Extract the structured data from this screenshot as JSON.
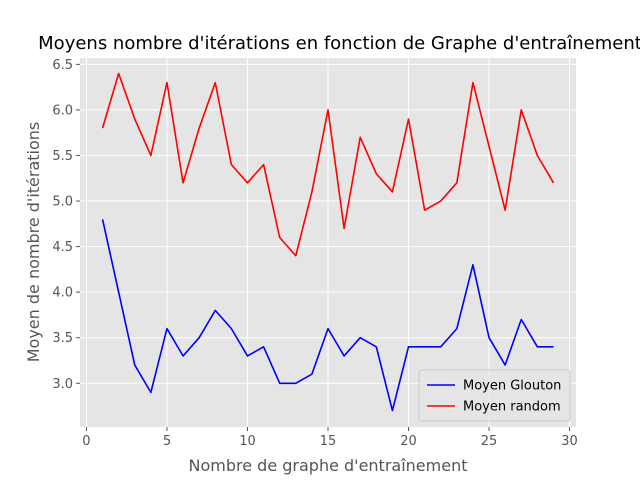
{
  "chart_data": {
    "type": "line",
    "title": "Moyens nombre d'itérations en fonction de Graphe d'entraînement",
    "xlabel": "Nombre de graphe d'entraînement",
    "ylabel": "Moyen de nombre d'itérations",
    "xlim": [
      -0.4,
      30.4
    ],
    "ylim": [
      2.52,
      6.57
    ],
    "xticks": [
      0,
      5,
      10,
      15,
      20,
      25,
      30
    ],
    "yticks": [
      3.0,
      3.5,
      4.0,
      4.5,
      5.0,
      5.5,
      6.0,
      6.5
    ],
    "grid": true,
    "legend_position": "lower-right",
    "background": "#e5e5e5",
    "x": [
      1,
      2,
      3,
      4,
      5,
      6,
      7,
      8,
      9,
      10,
      11,
      12,
      13,
      14,
      15,
      16,
      17,
      18,
      19,
      20,
      21,
      22,
      23,
      24,
      25,
      26,
      27,
      28,
      29
    ],
    "series": [
      {
        "name": "Moyen Glouton",
        "color": "#0000ff",
        "values": [
          4.8,
          4.0,
          3.2,
          2.9,
          3.6,
          3.3,
          3.5,
          3.8,
          3.6,
          3.3,
          3.4,
          3.0,
          3.0,
          3.1,
          3.6,
          3.3,
          3.5,
          3.4,
          2.7,
          3.4,
          3.4,
          3.4,
          3.6,
          4.3,
          3.5,
          3.2,
          3.7,
          3.4,
          3.4
        ]
      },
      {
        "name": "Moyen random",
        "color": "#ff0000",
        "values": [
          5.8,
          6.4,
          5.9,
          5.5,
          6.3,
          5.2,
          5.8,
          6.3,
          5.4,
          5.2,
          5.4,
          4.6,
          4.4,
          5.1,
          6.0,
          4.7,
          5.7,
          5.3,
          5.1,
          5.9,
          4.9,
          5.0,
          5.2,
          6.3,
          5.6,
          4.9,
          6.0,
          5.5,
          5.2
        ]
      }
    ]
  }
}
